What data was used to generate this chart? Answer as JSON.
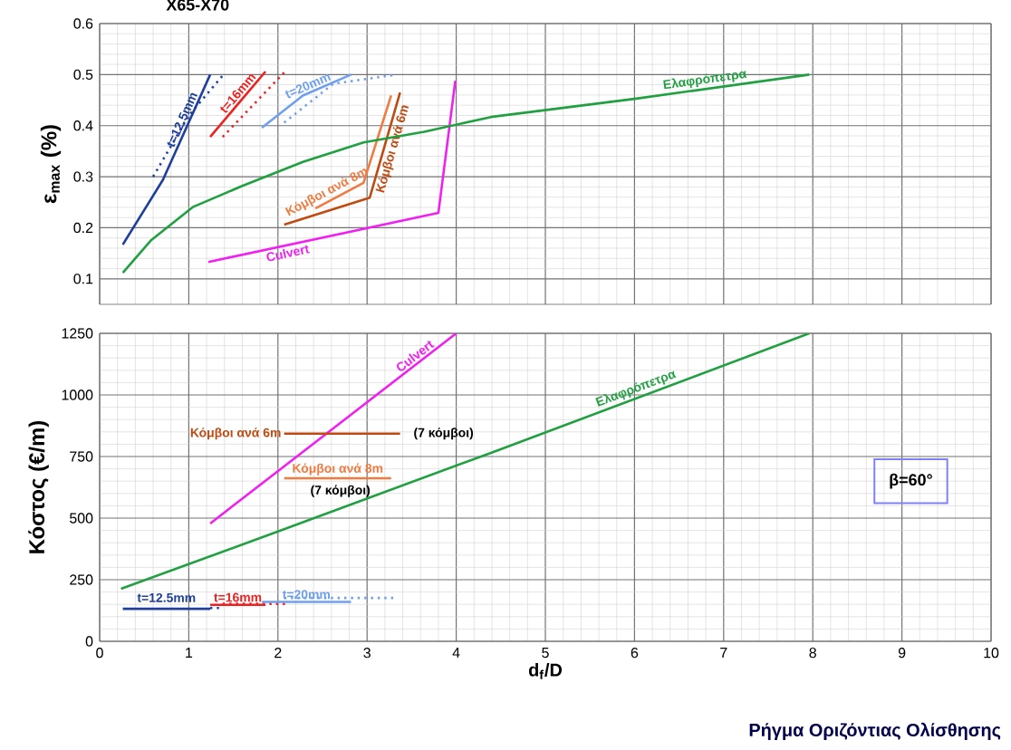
{
  "chart_data": [
    {
      "type": "line",
      "title": "X65-X70",
      "ylabel": "ε$_{max}$ (%)",
      "xlim": [
        0,
        10
      ],
      "xticks": [
        0,
        1,
        2,
        3,
        4,
        5,
        6,
        7,
        8,
        9,
        10
      ],
      "ylim": [
        0.05,
        0.6
      ],
      "yticks": [
        0.1,
        0.2,
        0.3,
        0.4,
        0.5,
        0.6
      ],
      "grid": true,
      "tick_labels": "y",
      "series": [
        {
          "name": "t=12.5mm",
          "color": "#1f3f9f",
          "x": [
            0.26,
            0.71,
            1.24
          ],
          "values": [
            0.167,
            0.294,
            0.5
          ]
        },
        {
          "color": "#1f3f9f",
          "line_style": "dotted",
          "x": [
            0.6,
            1.0,
            1.39
          ],
          "values": [
            0.3,
            0.42,
            0.5
          ]
        },
        {
          "name": "t=16mm",
          "color": "#ee2020",
          "x": [
            1.24,
            1.86
          ],
          "values": [
            0.378,
            0.506
          ]
        },
        {
          "color": "#ee2020",
          "line_style": "dotted",
          "x": [
            1.38,
            2.08
          ],
          "values": [
            0.378,
            0.506
          ]
        },
        {
          "name": "t=20mm",
          "color": "#6fa0f0",
          "x": [
            1.82,
            2.28,
            2.82
          ],
          "values": [
            0.396,
            0.459,
            0.5
          ]
        },
        {
          "color": "#6fa0f0",
          "line_style": "dotted",
          "x": [
            2.07,
            2.62,
            3.33
          ],
          "values": [
            0.406,
            0.482,
            0.5
          ]
        },
        {
          "name": "Κόμβοι ανά 8m",
          "color": "#f07a40",
          "x": [
            2.42,
            2.96,
            3.27
          ],
          "values": [
            0.238,
            0.288,
            0.459
          ]
        },
        {
          "name": "Κόμβοι ανά 6m",
          "color": "#c04a10",
          "x": [
            2.07,
            3.03,
            3.37
          ],
          "values": [
            0.206,
            0.259,
            0.465
          ]
        },
        {
          "name": "Culvert",
          "color": "#f020f0",
          "x": [
            1.22,
            3.8,
            3.99
          ],
          "values": [
            0.133,
            0.229,
            0.488
          ]
        },
        {
          "name": "Ελαφρόπετρα",
          "color": "#20a040",
          "x": [
            0.26,
            0.58,
            1.05,
            1.6,
            2.28,
            2.96,
            3.64,
            4.39,
            6.02,
            7.96
          ],
          "values": [
            0.112,
            0.176,
            0.241,
            0.282,
            0.329,
            0.367,
            0.388,
            0.417,
            0.453,
            0.5
          ]
        }
      ]
    },
    {
      "type": "line",
      "xlabel": "d$_{f}$/D",
      "ylabel": "Κόστος (€/m)",
      "xlim": [
        0,
        10
      ],
      "xticks": [
        0,
        1,
        2,
        3,
        4,
        5,
        6,
        7,
        8,
        9,
        10
      ],
      "ylim": [
        0,
        1250
      ],
      "yticks": [
        0,
        250,
        500,
        750,
        1000,
        1250
      ],
      "grid": true,
      "series": [
        {
          "name": "Culvert",
          "color": "#f020f0",
          "x": [
            1.24,
            4.0
          ],
          "values": [
            478,
            1250
          ]
        },
        {
          "name": "Ελαφρόπετρα",
          "color": "#20a040",
          "x": [
            0.24,
            2.0,
            4.39,
            7.96
          ],
          "values": [
            213,
            446,
            765,
            1250
          ]
        },
        {
          "name": "Κόμβοι ανά 6m",
          "color": "#c04a10",
          "x": [
            2.07,
            3.37
          ],
          "values": [
            843,
            843
          ]
        },
        {
          "name": "Κόμβοι ανά 8m",
          "color": "#f07a40",
          "x": [
            2.07,
            3.27
          ],
          "values": [
            662,
            662
          ]
        },
        {
          "name": "t=12.5mm",
          "color": "#1f3f9f",
          "x": [
            0.26,
            1.24
          ],
          "values": [
            132,
            132
          ]
        },
        {
          "color": "#1f3f9f",
          "line_style": "dotted",
          "x": [
            1.24,
            1.39
          ],
          "values": [
            135,
            135
          ]
        },
        {
          "name": "t=16mm",
          "color": "#ee2020",
          "x": [
            1.24,
            1.86
          ],
          "values": [
            148,
            148
          ]
        },
        {
          "color": "#ee2020",
          "line_style": "dotted",
          "x": [
            1.38,
            2.08
          ],
          "values": [
            152,
            152
          ]
        },
        {
          "name": "t=20mm",
          "color": "#6fa0f0",
          "x": [
            1.82,
            2.82
          ],
          "values": [
            160,
            160
          ]
        },
        {
          "color": "#6fa0f0",
          "line_style": "dotted",
          "x": [
            2.07,
            3.33
          ],
          "values": [
            176,
            176
          ]
        }
      ],
      "annotations": [
        "(7 κόμβοι)",
        "(7 κόμβοι)",
        "β=60°",
        "Ρήγμα Οριζόντιας Ολίσθησης"
      ]
    }
  ]
}
